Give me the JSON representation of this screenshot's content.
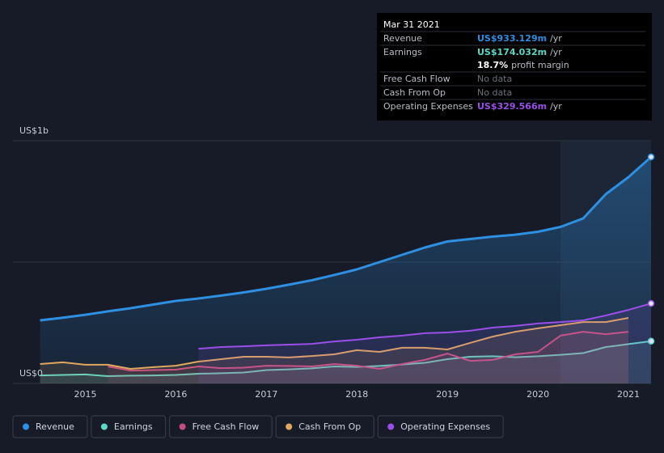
{
  "chart_data": {
    "type": "line",
    "x": [
      2014.5,
      2014.75,
      2015,
      2015.25,
      2015.5,
      2015.75,
      2016,
      2016.25,
      2016.5,
      2016.75,
      2017,
      2017.25,
      2017.5,
      2017.75,
      2018,
      2018.25,
      2018.5,
      2018.75,
      2019,
      2019.25,
      2019.5,
      2019.75,
      2020,
      2020.25,
      2020.5,
      2020.75,
      2021,
      2021.25
    ],
    "series": [
      {
        "name": "Revenue",
        "color": "#2f8fe0",
        "values": [
          260,
          271,
          283,
          297,
          310,
          325,
          340,
          350,
          362,
          375,
          390,
          407,
          425,
          447,
          470,
          500,
          530,
          560,
          585,
          595,
          605,
          613,
          625,
          645,
          680,
          780,
          850,
          933.129
        ]
      },
      {
        "name": "Earnings",
        "color": "#5ed8c6",
        "values": [
          33,
          35,
          37,
          30,
          32,
          33,
          35,
          40,
          42,
          45,
          55,
          58,
          62,
          70,
          68,
          72,
          78,
          85,
          100,
          110,
          112,
          108,
          112,
          118,
          125,
          150,
          162,
          174.032
        ]
      },
      {
        "name": "Free Cash Flow",
        "color": "#c84a82",
        "values": [
          null,
          null,
          null,
          70,
          53,
          55,
          57,
          70,
          63,
          65,
          73,
          72,
          70,
          80,
          73,
          60,
          80,
          97,
          123,
          93,
          97,
          120,
          130,
          197,
          213,
          203,
          213,
          null
        ]
      },
      {
        "name": "Cash From Op",
        "color": "#e0a85e",
        "values": [
          80,
          87,
          77,
          77,
          60,
          67,
          73,
          90,
          100,
          110,
          110,
          107,
          113,
          120,
          137,
          130,
          147,
          147,
          140,
          167,
          193,
          213,
          227,
          240,
          253,
          253,
          270,
          null
        ]
      },
      {
        "name": "Operating Expenses",
        "color": "#9b4fe8",
        "values": [
          null,
          null,
          null,
          null,
          null,
          null,
          null,
          143,
          150,
          153,
          157,
          160,
          163,
          173,
          180,
          190,
          197,
          207,
          210,
          217,
          230,
          237,
          247,
          253,
          260,
          280,
          303,
          329.566
        ]
      }
    ],
    "xlim": [
      2014.2,
      2021.25
    ],
    "xticks": [
      2015,
      2016,
      2017,
      2018,
      2019,
      2020,
      2021
    ],
    "ylim": [
      0,
      1000
    ],
    "yticks": [
      {
        "value": 0,
        "label": "US$0"
      },
      {
        "value": 500,
        "label": null
      },
      {
        "value": 1000,
        "label": "US$1b"
      }
    ],
    "grid": true,
    "tooltip": {
      "date": "Mar 31 2021",
      "rows": [
        {
          "name": "Revenue",
          "value": 933.129,
          "label": "US$933.129m",
          "unit": "/yr"
        },
        {
          "name": "Earnings",
          "value": 174.032,
          "label": "US$174.032m",
          "unit": "/yr"
        },
        {
          "value": 18.7,
          "label": "18.7%",
          "unit": "profit margin"
        },
        {
          "name": "Free Cash Flow",
          "label": "No data"
        },
        {
          "name": "Cash From Op",
          "label": "No data"
        },
        {
          "name": "Operating Expenses",
          "value": 329.566,
          "label": "US$329.566m",
          "unit": "/yr"
        }
      ]
    }
  }
}
